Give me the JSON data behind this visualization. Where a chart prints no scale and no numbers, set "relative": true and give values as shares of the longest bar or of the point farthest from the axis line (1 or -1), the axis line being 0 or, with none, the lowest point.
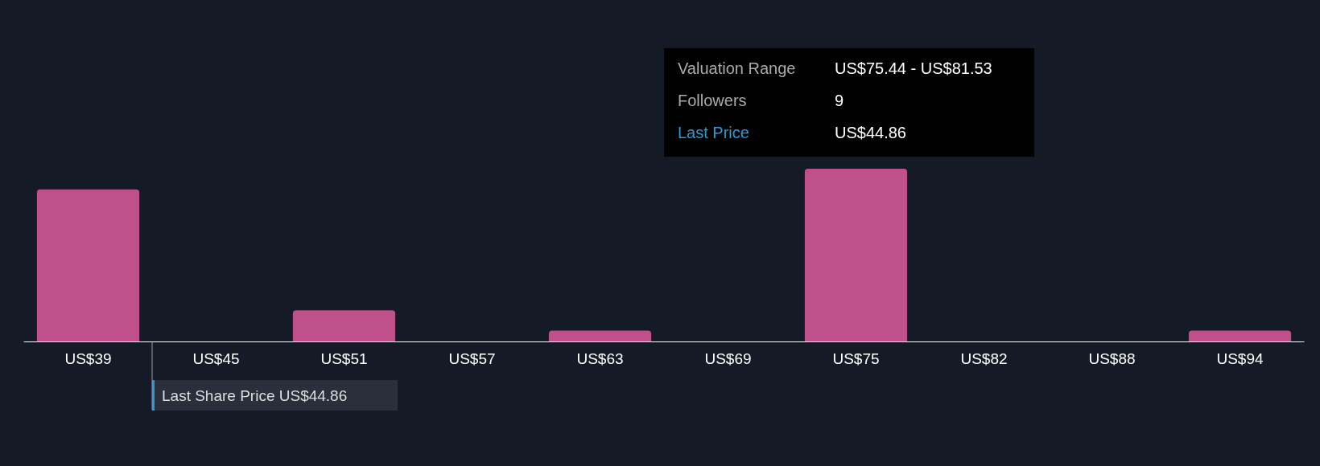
{
  "chart_data": {
    "type": "bar",
    "relative": true,
    "categories": [
      "US$39",
      "US$45",
      "US$51",
      "US$57",
      "US$63",
      "US$69",
      "US$75",
      "US$82",
      "US$88",
      "US$94"
    ],
    "values": [
      0.88,
      0,
      0.18,
      0,
      0.063,
      0,
      1,
      0,
      0,
      0.063
    ],
    "color": "#c0508c",
    "annotations": [
      "Valuation Range",
      "US$75.44 - US$81.53",
      "Followers",
      "9",
      "Last Price",
      "US$44.86",
      "Last Share Price US$44.86"
    ],
    "grid": false
  }
}
